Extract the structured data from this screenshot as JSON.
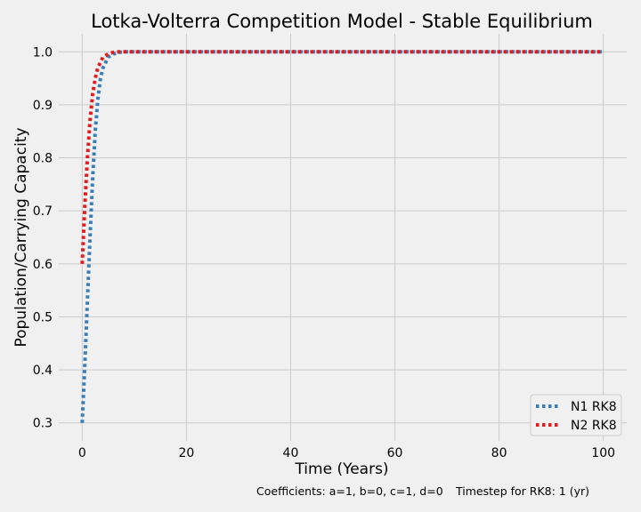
{
  "chart_data": {
    "type": "line",
    "title": "Lotka-Volterra Competition Model - Stable Equilibrium",
    "xlabel": "Time (Years)",
    "ylabel": "Population/Carrying Capacity",
    "xlim": [
      -4.5,
      104.5
    ],
    "ylim": [
      0.266,
      1.034
    ],
    "xticks": [
      0,
      20,
      40,
      60,
      80,
      100
    ],
    "yticks": [
      0.3,
      0.4,
      0.5,
      0.6,
      0.7,
      0.8,
      0.9,
      1.0
    ],
    "grid": true,
    "legend_position": "lower-right",
    "series": [
      {
        "name": "N1 RK8",
        "color": "#377eb8",
        "x": [
          0,
          0.5,
          1,
          1.5,
          2,
          2.5,
          3,
          3.5,
          4,
          5,
          6,
          7,
          8,
          10,
          20,
          30,
          40,
          50,
          60,
          70,
          80,
          90,
          100
        ],
        "y": [
          0.3,
          0.41,
          0.53,
          0.65,
          0.76,
          0.85,
          0.91,
          0.95,
          0.97,
          0.99,
          0.996,
          0.999,
          1.0,
          1.0,
          1.0,
          1.0,
          1.0,
          1.0,
          1.0,
          1.0,
          1.0,
          1.0,
          1.0
        ]
      },
      {
        "name": "N2 RK8",
        "color": "#e41a1c",
        "x": [
          0,
          0.5,
          1,
          1.5,
          2,
          2.5,
          3,
          3.5,
          4,
          5,
          6,
          7,
          8,
          10,
          20,
          30,
          40,
          50,
          60,
          70,
          80,
          90,
          100
        ],
        "y": [
          0.6,
          0.71,
          0.8,
          0.87,
          0.92,
          0.95,
          0.97,
          0.98,
          0.99,
          0.996,
          0.999,
          1.0,
          1.0,
          1.0,
          1.0,
          1.0,
          1.0,
          1.0,
          1.0,
          1.0,
          1.0,
          1.0,
          1.0
        ]
      }
    ],
    "annotations": [
      "Coefficients: a=1, b=0, c=1, d=0",
      "Timestep for RK8: 1 (yr)"
    ]
  }
}
